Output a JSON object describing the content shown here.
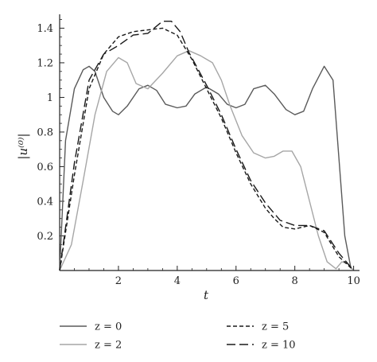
{
  "chart_data": {
    "type": "line",
    "xlabel": "t",
    "ylabel": "|u⁽⁰⁾|",
    "xlim": [
      0,
      10.2
    ],
    "ylim": [
      0,
      1.48
    ],
    "xticks": [
      0,
      2,
      4,
      6,
      8,
      10
    ],
    "yticks": [
      0.2,
      0.4,
      0.6,
      0.8,
      1,
      1.2,
      1.4
    ],
    "xtick_labels": [
      "2",
      "4",
      "6",
      "8",
      "10"
    ],
    "ytick_labels": [
      "0.2",
      "0.4",
      "0.6",
      "0.8",
      "1",
      "1.2",
      "1.4"
    ],
    "legend_placement": "below",
    "series": [
      {
        "name": "z = 0",
        "color": "#5a5a5a",
        "dash": "solid",
        "x": [
          0,
          0.2,
          0.5,
          0.8,
          1.0,
          1.2,
          1.5,
          1.8,
          2.0,
          2.3,
          2.7,
          3.0,
          3.3,
          3.6,
          4.0,
          4.3,
          4.6,
          5.0,
          5.4,
          5.7,
          6.0,
          6.3,
          6.6,
          7.0,
          7.3,
          7.7,
          8.0,
          8.3,
          8.6,
          9.0,
          9.3,
          9.5,
          9.7,
          9.9,
          10.0
        ],
        "y": [
          0,
          0.75,
          1.05,
          1.16,
          1.18,
          1.15,
          1.0,
          0.92,
          0.9,
          0.95,
          1.05,
          1.07,
          1.04,
          0.96,
          0.94,
          0.95,
          1.02,
          1.06,
          1.02,
          0.96,
          0.94,
          0.96,
          1.05,
          1.07,
          1.02,
          0.93,
          0.9,
          0.92,
          1.05,
          1.18,
          1.1,
          0.65,
          0.2,
          0.02,
          0
        ]
      },
      {
        "name": "z = 2",
        "color": "#a6a6a6",
        "dash": "solid",
        "x": [
          0,
          0.4,
          0.8,
          1.2,
          1.6,
          2.0,
          2.3,
          2.6,
          3.0,
          3.5,
          4.0,
          4.4,
          4.8,
          5.2,
          5.5,
          5.8,
          6.2,
          6.6,
          7.0,
          7.3,
          7.6,
          7.9,
          8.2,
          8.5,
          8.8,
          9.1,
          9.4,
          9.6,
          9.8,
          10.0
        ],
        "y": [
          0,
          0.15,
          0.52,
          0.9,
          1.15,
          1.23,
          1.2,
          1.08,
          1.05,
          1.14,
          1.24,
          1.27,
          1.24,
          1.2,
          1.1,
          0.95,
          0.78,
          0.68,
          0.65,
          0.66,
          0.69,
          0.69,
          0.6,
          0.4,
          0.2,
          0.05,
          0.01,
          0.05,
          0.04,
          0
        ]
      },
      {
        "name": "z = 5",
        "color": "#1a1a1a",
        "dash": "5,3",
        "x": [
          0,
          0.5,
          1.0,
          1.5,
          2.0,
          2.5,
          3.0,
          3.5,
          4.0,
          4.5,
          5.0,
          5.5,
          6.0,
          6.5,
          7.0,
          7.3,
          7.6,
          8.0,
          8.5,
          9.0,
          9.5,
          10.0
        ],
        "y": [
          0,
          0.55,
          1.05,
          1.25,
          1.35,
          1.38,
          1.39,
          1.4,
          1.36,
          1.22,
          1.05,
          0.88,
          0.68,
          0.5,
          0.36,
          0.3,
          0.25,
          0.24,
          0.26,
          0.22,
          0.08,
          0
        ]
      },
      {
        "name": "z = 10",
        "color": "#1a1a1a",
        "dash": "11,5",
        "x": [
          0,
          0.5,
          1.0,
          1.5,
          2.0,
          2.5,
          3.0,
          3.5,
          3.8,
          4.1,
          4.4,
          5.0,
          5.5,
          6.0,
          6.5,
          7.0,
          7.5,
          8.0,
          8.5,
          9.0,
          9.5,
          10.0
        ],
        "y": [
          0,
          0.62,
          1.1,
          1.25,
          1.3,
          1.36,
          1.37,
          1.44,
          1.44,
          1.38,
          1.26,
          1.07,
          0.9,
          0.7,
          0.52,
          0.39,
          0.29,
          0.26,
          0.26,
          0.23,
          0.1,
          0
        ]
      }
    ]
  }
}
